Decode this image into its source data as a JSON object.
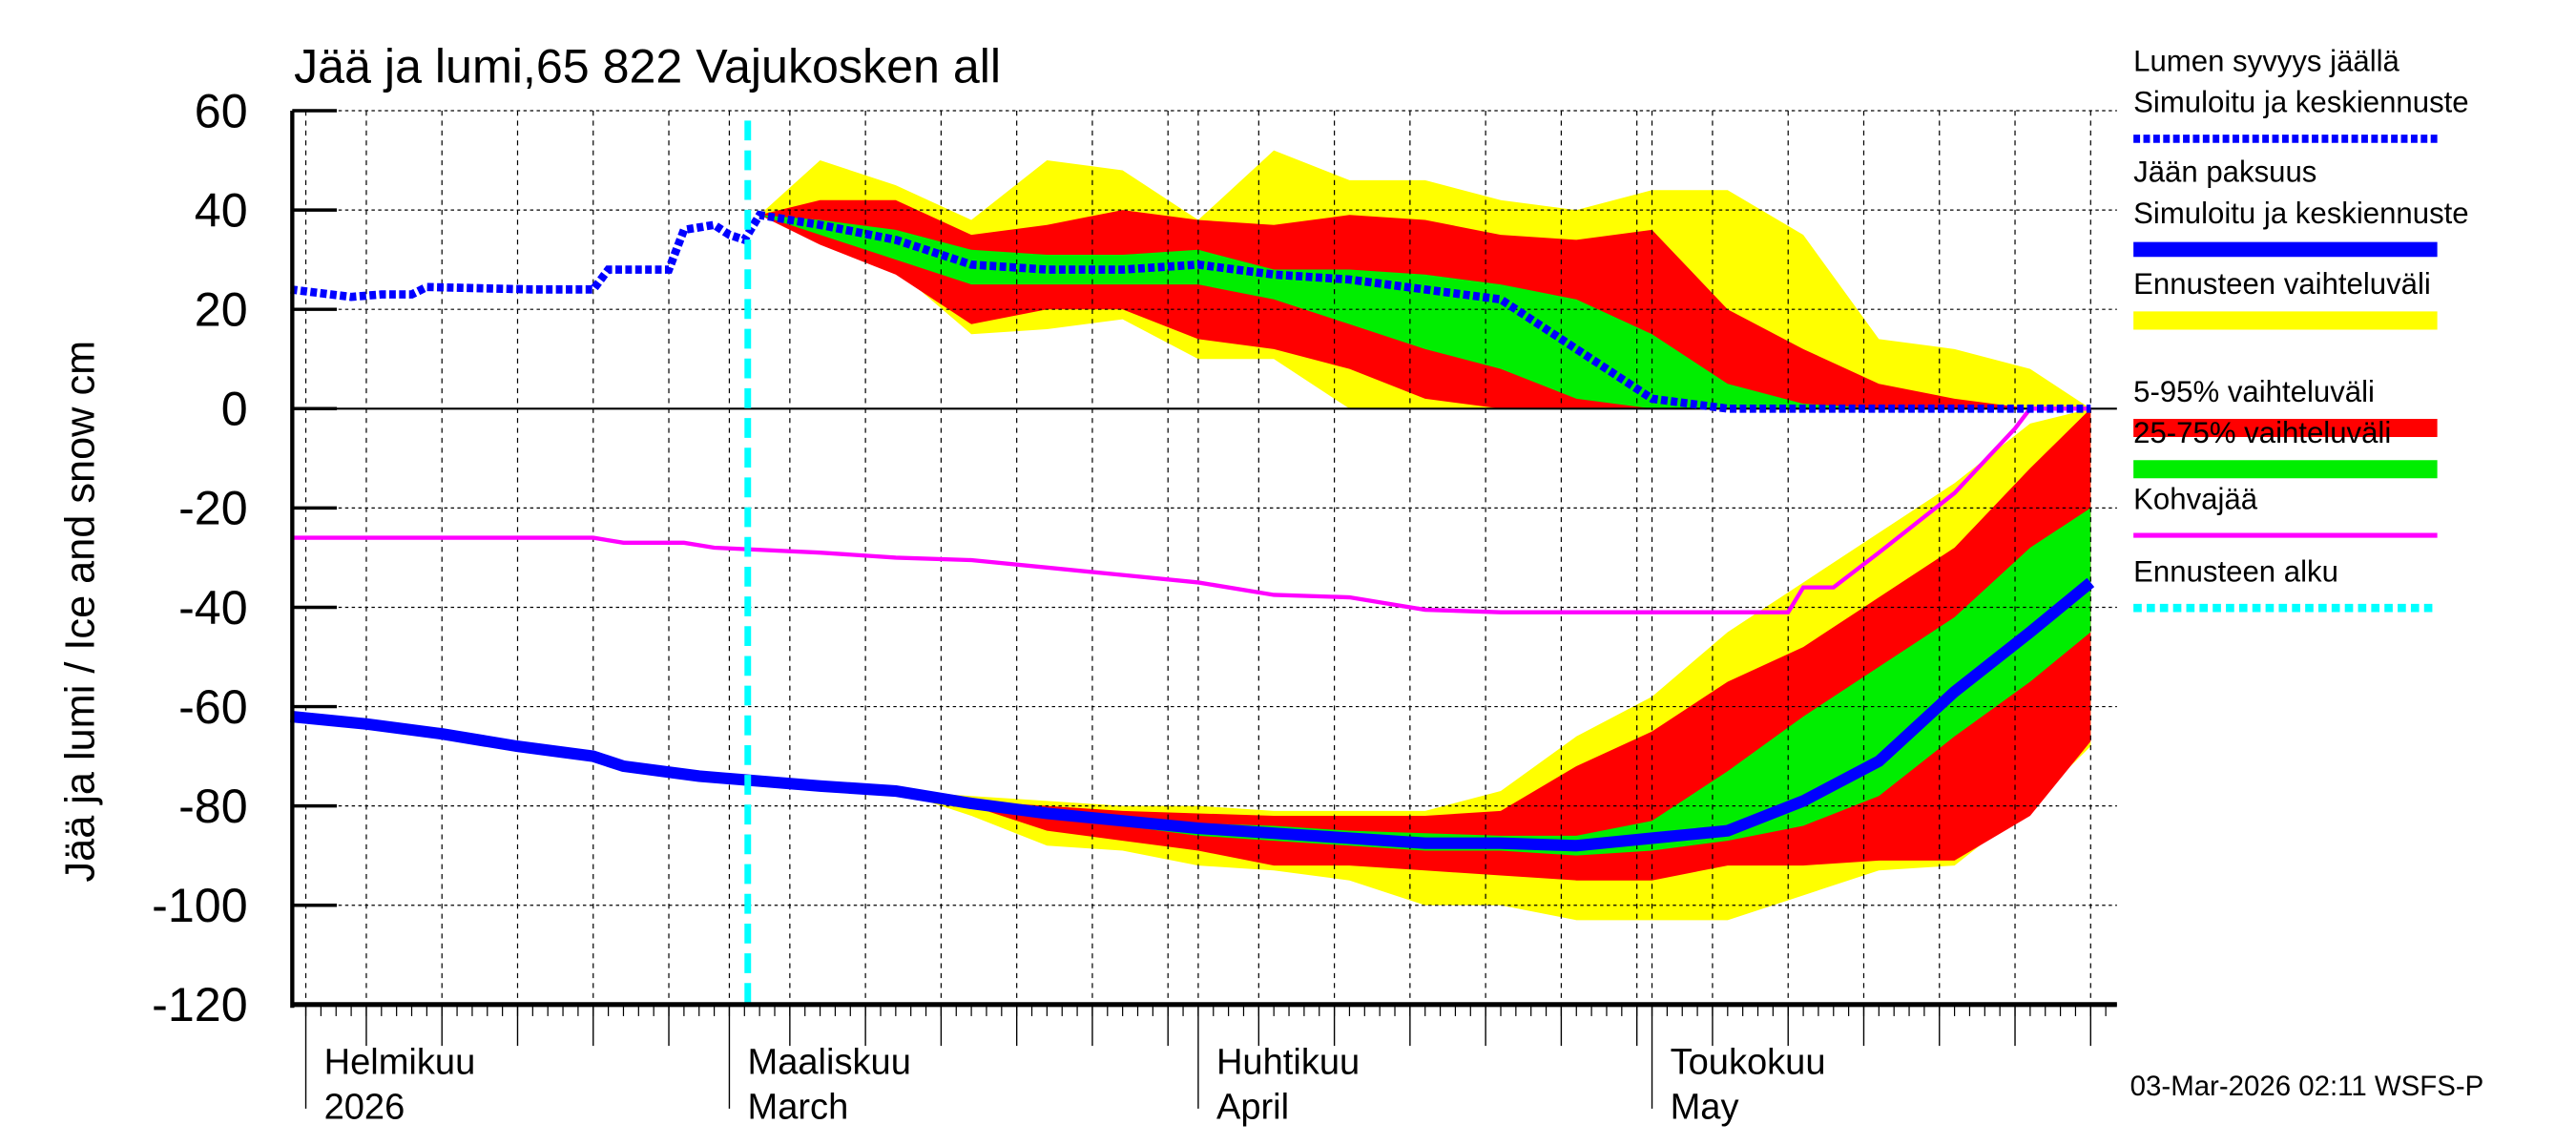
{
  "chart_data": {
    "type": "area",
    "title": "Jää ja lumi,65 822 Vajukosken all",
    "ylabel": "Jää ja lumi / Ice and snow    cm",
    "ylim": [
      -120,
      60
    ],
    "yticks": [
      "60",
      "40",
      "20",
      "0",
      "-20",
      "-40",
      "-60",
      "-80",
      "-100",
      "-120"
    ],
    "xlim": [
      "2026-01-31",
      "2026-05-30"
    ],
    "x_month_labels": [
      {
        "date": "2026-02-01",
        "line1": "Helmikuu",
        "line2": "2026"
      },
      {
        "date": "2026-03-01",
        "line1": "Maaliskuu",
        "line2": "March"
      },
      {
        "date": "2026-04-01",
        "line1": "Huhtikuu",
        "line2": "April"
      },
      {
        "date": "2026-05-01",
        "line1": "Toukokuu",
        "line2": "May"
      }
    ],
    "grid": true,
    "legend_position": "right",
    "forecast_start": "2026-03-02",
    "timestamp": "03-Mar-2026 02:11 WSFS-P",
    "colors": {
      "snow": "#0000ff",
      "ice": "#0000ff",
      "range": "#ffff00",
      "p5_95": "#ff0000",
      "p25_75": "#00ee00",
      "slush": "#ff00ff",
      "forecast_start": "#00ffff"
    },
    "legend": [
      {
        "line1": "Lumen syvyys jäällä",
        "line2": "Simuloitu ja keskiennuste",
        "style": "blue-dotted"
      },
      {
        "line1": "Jään paksuus",
        "line2": "Simuloitu ja keskiennuste",
        "style": "blue-solid"
      },
      {
        "line1": "Ennusteen vaihteluväli",
        "style": "yellow-bar"
      },
      {
        "line1": "5-95% vaihteluväli",
        "style": "red-bar"
      },
      {
        "line1": "25-75% vaihteluväli",
        "style": "green-bar"
      },
      {
        "line1": "Kohvajää",
        "style": "magenta-line"
      },
      {
        "line1": "Ennusteen alku",
        "style": "cyan-dotted"
      }
    ],
    "forecast_dates": [
      "2026-03-03",
      "2026-03-07",
      "2026-03-12",
      "2026-03-17",
      "2026-03-22",
      "2026-03-27",
      "2026-04-01",
      "2026-04-06",
      "2026-04-11",
      "2026-04-16",
      "2026-04-21",
      "2026-04-26",
      "2026-05-01",
      "2026-05-06",
      "2026-05-11",
      "2026-05-16",
      "2026-05-21",
      "2026-05-26",
      "2026-05-30"
    ],
    "snow": {
      "history": [
        [
          "2026-01-31",
          24
        ],
        [
          "2026-02-04",
          22.5
        ],
        [
          "2026-02-06",
          23
        ],
        [
          "2026-02-08",
          23
        ],
        [
          "2026-02-09",
          24.5
        ],
        [
          "2026-02-16",
          24
        ],
        [
          "2026-02-20",
          24
        ],
        [
          "2026-02-21",
          28
        ],
        [
          "2026-02-25",
          28
        ],
        [
          "2026-02-26",
          36
        ],
        [
          "2026-02-28",
          37
        ],
        [
          "2026-03-01",
          35
        ],
        [
          "2026-03-02",
          34
        ]
      ],
      "median": [
        39,
        37,
        34,
        29,
        28,
        28,
        29,
        27,
        26,
        24,
        22,
        12,
        2,
        0,
        0,
        0,
        0,
        0,
        0
      ],
      "range_top": [
        39,
        50,
        45,
        38,
        50,
        48,
        38,
        52,
        46,
        46,
        42,
        40,
        44,
        44,
        35,
        14,
        12,
        8,
        0
      ],
      "range_bottom": [
        39,
        34,
        28,
        15,
        16,
        18,
        10,
        10,
        0,
        0,
        0,
        0,
        0,
        0,
        0,
        0,
        0,
        0,
        0
      ],
      "p95": [
        39,
        42,
        42,
        35,
        37,
        40,
        38,
        37,
        39,
        38,
        35,
        34,
        36,
        20,
        12,
        5,
        2,
        0,
        0
      ],
      "p5": [
        39,
        33,
        27,
        17,
        20,
        20,
        14,
        12,
        8,
        2,
        0,
        0,
        0,
        0,
        0,
        0,
        0,
        0,
        0
      ],
      "p75": [
        39,
        38,
        36,
        32,
        31,
        31,
        32,
        28,
        28,
        27,
        25,
        22,
        15,
        5,
        1,
        0,
        0,
        0,
        0
      ],
      "p25": [
        39,
        35,
        30,
        25,
        25,
        25,
        25,
        22,
        17,
        12,
        8,
        2,
        0,
        0,
        0,
        0,
        0,
        0,
        0
      ]
    },
    "ice": {
      "history": [
        [
          "2026-01-31",
          -62
        ],
        [
          "2026-02-05",
          -63.5
        ],
        [
          "2026-02-10",
          -65.5
        ],
        [
          "2026-02-15",
          -68
        ],
        [
          "2026-02-20",
          -70
        ],
        [
          "2026-02-22",
          -72
        ],
        [
          "2026-02-27",
          -74
        ],
        [
          "2026-03-03",
          -75
        ]
      ],
      "median": [
        -75,
        -76,
        -77,
        -79.5,
        -81.5,
        -83,
        -84.5,
        -85.5,
        -86.5,
        -87.5,
        -87.5,
        -88,
        -86.5,
        -85,
        -79,
        -71,
        -57,
        -45,
        -35
      ],
      "range_top": [
        -75,
        -76,
        -77,
        -78,
        -79,
        -80,
        -80,
        -81,
        -81,
        -81,
        -77,
        -66,
        -58,
        -45,
        -35,
        -25,
        -15,
        -3,
        0
      ],
      "range_bottom": [
        -75,
        -76,
        -77,
        -82,
        -88,
        -89,
        -92,
        -93,
        -95,
        -100,
        -100,
        -103,
        -103,
        -103,
        -98,
        -93,
        -92,
        -80,
        -68
      ],
      "p95": [
        -75,
        -76,
        -77,
        -79,
        -80,
        -81,
        -81.5,
        -82,
        -82,
        -82,
        -81,
        -72,
        -65,
        -55,
        -48,
        -38,
        -28,
        -12,
        0
      ],
      "p5": [
        -75,
        -76,
        -77,
        -80,
        -85,
        -87,
        -89,
        -92,
        -92,
        -93,
        -94,
        -95,
        -95,
        -92,
        -92,
        -91,
        -91,
        -82,
        -67
      ],
      "p75": [
        -75,
        -76,
        -77,
        -79,
        -81,
        -82.5,
        -83.5,
        -84,
        -85,
        -85.5,
        -86,
        -86,
        -83,
        -73,
        -62,
        -52,
        -42,
        -28,
        -20
      ],
      "p25": [
        -75,
        -76,
        -77,
        -80,
        -82,
        -84,
        -86,
        -87,
        -88,
        -89,
        -89,
        -90,
        -89,
        -87,
        -84,
        -78,
        -66,
        -55,
        -45
      ]
    },
    "slush": [
      [
        "2026-01-31",
        -26
      ],
      [
        "2026-02-20",
        -26
      ],
      [
        "2026-02-22",
        -27
      ],
      [
        "2026-02-26",
        -27
      ],
      [
        "2026-02-28",
        -28
      ],
      [
        "2026-03-07",
        -29
      ],
      [
        "2026-03-12",
        -30
      ],
      [
        "2026-03-17",
        -30.5
      ],
      [
        "2026-03-22",
        -32
      ],
      [
        "2026-03-27",
        -33.5
      ],
      [
        "2026-04-01",
        -35
      ],
      [
        "2026-04-06",
        -37.5
      ],
      [
        "2026-04-11",
        -38
      ],
      [
        "2026-04-16",
        -40.5
      ],
      [
        "2026-04-21",
        -41
      ],
      [
        "2026-05-10",
        -41
      ],
      [
        "2026-05-11",
        -36
      ],
      [
        "2026-05-13",
        -36
      ],
      [
        "2026-05-16",
        -29
      ],
      [
        "2026-05-21",
        -17
      ],
      [
        "2026-05-25",
        -4
      ],
      [
        "2026-05-26",
        0
      ],
      [
        "2026-05-30",
        0
      ]
    ]
  }
}
